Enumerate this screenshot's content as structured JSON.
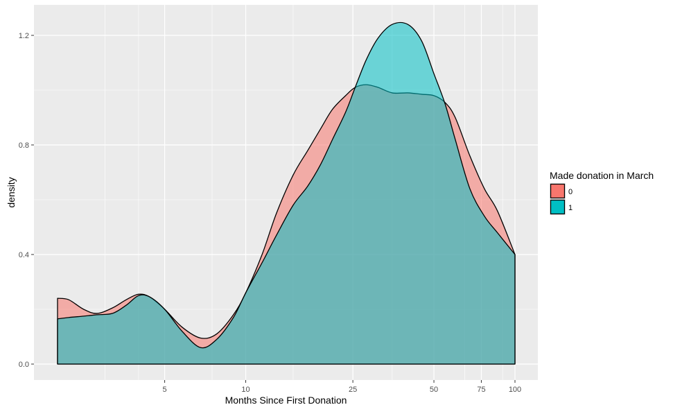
{
  "chart_data": {
    "type": "area",
    "chart_subtype": "density",
    "title": "",
    "xlabel": "Months Since First Donation",
    "ylabel": "density",
    "x_scale": "log10",
    "xlim": [
      2,
      100
    ],
    "ylim": [
      0,
      1.25
    ],
    "x_ticks": [
      5,
      10,
      25,
      50,
      75,
      100
    ],
    "x_tick_labels": [
      "5",
      "10",
      "25",
      "50",
      "75",
      "100"
    ],
    "y_ticks": [
      0.0,
      0.4,
      0.8,
      1.2
    ],
    "y_tick_labels": [
      "0.0",
      "0.4",
      "0.8",
      "1.2"
    ],
    "grid": true,
    "legend": {
      "title": "Made donation in March",
      "position": "right"
    },
    "series": [
      {
        "name": "0",
        "color": "#F8766D",
        "x": [
          2,
          2.2,
          2.5,
          2.8,
          3.2,
          3.6,
          4.0,
          4.4,
          5.0,
          5.8,
          6.8,
          7.8,
          9.0,
          10.0,
          11.5,
          13.0,
          15.0,
          17.0,
          19.0,
          21.0,
          23.5,
          25.5,
          28.0,
          31.0,
          35.0,
          40.0,
          45.0,
          50.0,
          55.0,
          60.0,
          68.0,
          77.0,
          86.0,
          100.0
        ],
        "y": [
          0.24,
          0.235,
          0.2,
          0.185,
          0.205,
          0.235,
          0.255,
          0.245,
          0.2,
          0.135,
          0.095,
          0.11,
          0.18,
          0.26,
          0.4,
          0.55,
          0.69,
          0.78,
          0.86,
          0.93,
          0.98,
          1.01,
          1.02,
          1.01,
          0.99,
          0.99,
          0.985,
          0.98,
          0.955,
          0.9,
          0.76,
          0.64,
          0.56,
          0.4
        ]
      },
      {
        "name": "1",
        "color": "#00BFC4",
        "x": [
          2,
          2.2,
          2.5,
          2.8,
          3.2,
          3.6,
          4.0,
          4.4,
          5.0,
          5.8,
          6.8,
          7.8,
          9.0,
          10.0,
          11.5,
          13.0,
          15.0,
          17.0,
          19.0,
          21.0,
          23.5,
          25.5,
          28.0,
          31.0,
          35.0,
          40.0,
          45.0,
          50.0,
          55.0,
          60.0,
          68.0,
          77.0,
          86.0,
          100.0
        ],
        "y": [
          0.165,
          0.17,
          0.175,
          0.18,
          0.185,
          0.215,
          0.25,
          0.245,
          0.2,
          0.12,
          0.06,
          0.09,
          0.17,
          0.26,
          0.37,
          0.47,
          0.58,
          0.65,
          0.73,
          0.82,
          0.92,
          1.01,
          1.11,
          1.19,
          1.24,
          1.24,
          1.18,
          1.06,
          0.95,
          0.82,
          0.64,
          0.54,
          0.48,
          0.4
        ]
      }
    ]
  }
}
